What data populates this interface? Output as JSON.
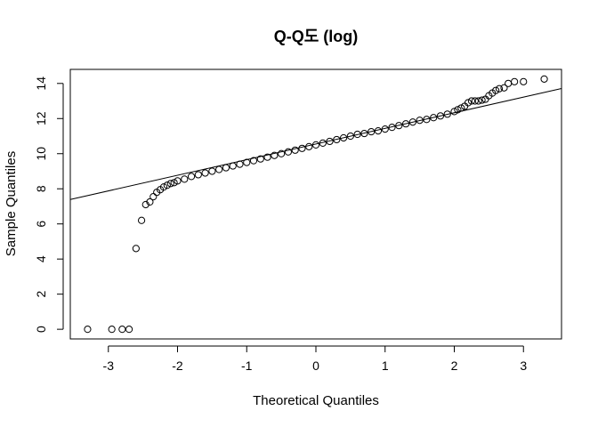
{
  "chart_data": {
    "type": "scatter",
    "subtype": "qq-plot",
    "title": "Q-Q도 (log)",
    "xlabel": "Theoretical Quantiles",
    "ylabel": "Sample Quantiles",
    "xlim": [
      -3.55,
      3.55
    ],
    "ylim": [
      -0.55,
      14.8
    ],
    "x_ticks": [
      -3,
      -2,
      -1,
      0,
      1,
      2,
      3
    ],
    "y_ticks": [
      0,
      2,
      4,
      6,
      8,
      10,
      12,
      14
    ],
    "grid": false,
    "legend": "none",
    "point_style": "open-circle",
    "point_color": "#000000",
    "reference_line": {
      "intercept": 10.55,
      "slope": 0.89,
      "color": "#000000"
    },
    "points": [
      [
        -3.3,
        0.0
      ],
      [
        -2.95,
        0.0
      ],
      [
        -2.8,
        0.0
      ],
      [
        -2.7,
        0.0
      ],
      [
        -2.6,
        4.6
      ],
      [
        -2.52,
        6.2
      ],
      [
        -2.46,
        7.1
      ],
      [
        -2.4,
        7.25
      ],
      [
        -2.35,
        7.55
      ],
      [
        -2.3,
        7.8
      ],
      [
        -2.25,
        7.95
      ],
      [
        -2.2,
        8.1
      ],
      [
        -2.15,
        8.2
      ],
      [
        -2.1,
        8.3
      ],
      [
        -2.05,
        8.35
      ],
      [
        -2.0,
        8.45
      ],
      [
        -1.9,
        8.55
      ],
      [
        -1.8,
        8.7
      ],
      [
        -1.7,
        8.8
      ],
      [
        -1.6,
        8.9
      ],
      [
        -1.5,
        9.0
      ],
      [
        -1.4,
        9.1
      ],
      [
        -1.3,
        9.2
      ],
      [
        -1.2,
        9.3
      ],
      [
        -1.1,
        9.4
      ],
      [
        -1.0,
        9.5
      ],
      [
        -0.9,
        9.6
      ],
      [
        -0.8,
        9.7
      ],
      [
        -0.7,
        9.8
      ],
      [
        -0.6,
        9.9
      ],
      [
        -0.5,
        10.0
      ],
      [
        -0.4,
        10.1
      ],
      [
        -0.3,
        10.2
      ],
      [
        -0.2,
        10.3
      ],
      [
        -0.1,
        10.4
      ],
      [
        0.0,
        10.5
      ],
      [
        0.1,
        10.6
      ],
      [
        0.2,
        10.7
      ],
      [
        0.3,
        10.8
      ],
      [
        0.4,
        10.9
      ],
      [
        0.5,
        11.0
      ],
      [
        0.6,
        11.1
      ],
      [
        0.7,
        11.15
      ],
      [
        0.8,
        11.25
      ],
      [
        0.9,
        11.3
      ],
      [
        1.0,
        11.4
      ],
      [
        1.1,
        11.5
      ],
      [
        1.2,
        11.6
      ],
      [
        1.3,
        11.7
      ],
      [
        1.4,
        11.8
      ],
      [
        1.5,
        11.9
      ],
      [
        1.6,
        11.95
      ],
      [
        1.7,
        12.05
      ],
      [
        1.8,
        12.15
      ],
      [
        1.9,
        12.25
      ],
      [
        2.0,
        12.4
      ],
      [
        2.05,
        12.5
      ],
      [
        2.1,
        12.6
      ],
      [
        2.15,
        12.7
      ],
      [
        2.2,
        12.9
      ],
      [
        2.25,
        13.0
      ],
      [
        2.3,
        13.0
      ],
      [
        2.35,
        13.0
      ],
      [
        2.4,
        13.05
      ],
      [
        2.45,
        13.1
      ],
      [
        2.5,
        13.3
      ],
      [
        2.55,
        13.45
      ],
      [
        2.6,
        13.6
      ],
      [
        2.65,
        13.7
      ],
      [
        2.72,
        13.75
      ],
      [
        2.78,
        14.0
      ],
      [
        2.87,
        14.1
      ],
      [
        3.0,
        14.1
      ],
      [
        3.3,
        14.25
      ]
    ]
  }
}
